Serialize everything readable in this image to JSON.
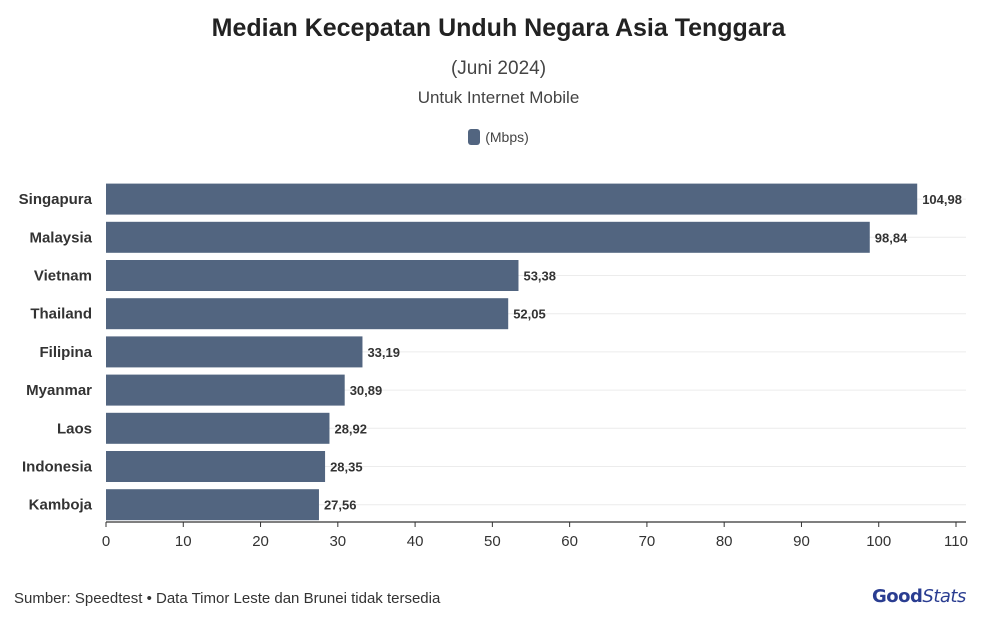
{
  "title": "Median Kecepatan Unduh Negara Asia Tenggara",
  "subtitle": "(Juni 2024)",
  "subtitle2": "Untuk Internet Mobile",
  "legend_label": "(Mbps)",
  "bar_color": "#526580",
  "footer": "Sumber: Speedtest • Data Timor Leste dan Brunei tidak tersedia",
  "logo": "GoodStats",
  "chart_data": {
    "type": "bar",
    "orientation": "horizontal",
    "categories": [
      "Singapura",
      "Malaysia",
      "Vietnam",
      "Thailand",
      "Filipina",
      "Myanmar",
      "Laos",
      "Indonesia",
      "Kamboja"
    ],
    "series": [
      {
        "name": "(Mbps)",
        "values": [
          104.98,
          98.84,
          53.38,
          52.05,
          33.19,
          30.89,
          28.92,
          28.35,
          27.56
        ],
        "labels": [
          "104,98",
          "98,84",
          "53,38",
          "52,05",
          "33,19",
          "30,89",
          "28,92",
          "28,35",
          "27,56"
        ]
      }
    ],
    "xlim": [
      0,
      110
    ],
    "xticks": [
      0,
      10,
      20,
      30,
      40,
      50,
      60,
      70,
      80,
      90,
      100,
      110
    ],
    "grid": true,
    "legend_position": "top-center"
  }
}
